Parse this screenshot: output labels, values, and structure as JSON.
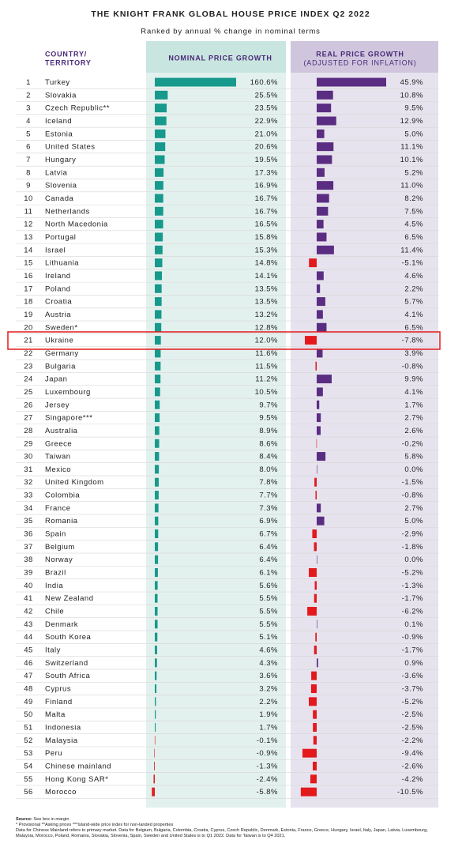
{
  "chart_data": {
    "type": "bar",
    "title": "THE KNIGHT FRANK GLOBAL HOUSE PRICE INDEX Q2 2022",
    "subtitle": "Ranked by annual % change in nominal terms",
    "category_header": [
      "COUNTRY/",
      "TERRITORY"
    ],
    "negative_color": "#e3191c",
    "ranks": [
      1,
      2,
      3,
      4,
      5,
      6,
      7,
      8,
      9,
      10,
      11,
      12,
      13,
      14,
      15,
      16,
      17,
      18,
      19,
      20,
      21,
      22,
      23,
      24,
      25,
      26,
      27,
      28,
      29,
      30,
      31,
      32,
      33,
      34,
      35,
      36,
      37,
      38,
      39,
      40,
      41,
      42,
      43,
      44,
      45,
      46,
      47,
      48,
      49,
      50,
      51,
      52,
      53,
      54,
      55,
      56
    ],
    "categories": [
      "Turkey",
      "Slovakia",
      "Czech Republic**",
      "Iceland",
      "Estonia",
      "United States",
      "Hungary",
      "Latvia",
      "Slovenia",
      "Canada",
      "Netherlands",
      "North Macedonia",
      "Portugal",
      "Israel",
      "Lithuania",
      "Ireland",
      "Poland",
      "Croatia",
      "Austria",
      "Sweden*",
      "Ukraine",
      "Germany",
      "Bulgaria",
      "Japan",
      "Luxembourg",
      "Jersey",
      "Singapore***",
      "Australia",
      "Greece",
      "Taiwan",
      "Mexico",
      "United Kingdom",
      "Colombia",
      "France",
      "Romania",
      "Spain",
      "Belgium",
      "Norway",
      "Brazil",
      "India",
      "New Zealand",
      "Chile",
      "Denmark",
      "South Korea",
      "Italy",
      "Switzerland",
      "South Africa",
      "Cyprus",
      "Finland",
      "Malta",
      "Indonesia",
      "Malaysia",
      "Peru",
      "Chinese mainland",
      "Hong Kong SAR*",
      "Morocco"
    ],
    "series": [
      {
        "name": "NOMINAL PRICE GROWTH",
        "color": "#17998c",
        "values": [
          160.6,
          25.5,
          23.5,
          22.9,
          21.0,
          20.6,
          19.5,
          17.3,
          16.9,
          16.7,
          16.7,
          16.5,
          15.8,
          15.3,
          14.8,
          14.1,
          13.5,
          13.5,
          13.2,
          12.8,
          12.0,
          11.6,
          11.5,
          11.2,
          10.5,
          9.7,
          9.5,
          8.9,
          8.6,
          8.4,
          8.0,
          7.8,
          7.7,
          7.3,
          6.9,
          6.7,
          6.4,
          6.4,
          6.1,
          5.6,
          5.5,
          5.5,
          5.5,
          5.1,
          4.6,
          4.3,
          3.6,
          3.2,
          2.2,
          1.9,
          1.7,
          -0.1,
          -0.9,
          -1.3,
          -2.4,
          -5.8
        ],
        "value_labels": [
          "160.6%",
          "25.5%",
          "23.5%",
          "22.9%",
          "21.0%",
          "20.6%",
          "19.5%",
          "17.3%",
          "16.9%",
          "16.7%",
          "16.7%",
          "16.5%",
          "15.8%",
          "15.3%",
          "14.8%",
          "14.1%",
          "13.5%",
          "13.5%",
          "13.2%",
          "12.8%",
          "12.0%",
          "11.6%",
          "11.5%",
          "11.2%",
          "10.5%",
          "9.7%",
          "9.5%",
          "8.9%",
          "8.6%",
          "8.4%",
          "8.0%",
          "7.8%",
          "7.7%",
          "7.3%",
          "6.9%",
          "6.7%",
          "6.4%",
          "6.4%",
          "6.1%",
          "5.6%",
          "5.5%",
          "5.5%",
          "5.5%",
          "5.1%",
          "4.6%",
          "4.3%",
          "3.6%",
          "3.2%",
          "2.2%",
          "1.9%",
          "1.7%",
          "-0.1%",
          "-0.9%",
          "-1.3%",
          "-2.4%",
          "-5.8%"
        ]
      },
      {
        "name": "REAL PRICE GROWTH",
        "name_note": "(ADJUSTED FOR INFLATION)",
        "color": "#5a2d82",
        "values": [
          45.9,
          10.8,
          9.5,
          12.9,
          5.0,
          11.1,
          10.1,
          5.2,
          11.0,
          8.2,
          7.5,
          4.5,
          6.5,
          11.4,
          -5.1,
          4.6,
          2.2,
          5.7,
          4.1,
          6.5,
          -7.8,
          3.9,
          -0.8,
          9.9,
          4.1,
          1.7,
          2.7,
          2.6,
          -0.2,
          5.8,
          0.0,
          -1.5,
          -0.8,
          2.7,
          5.0,
          -2.9,
          -1.8,
          0.0,
          -5.2,
          -1.3,
          -1.7,
          -6.2,
          0.1,
          -0.9,
          -1.7,
          0.9,
          -3.6,
          -3.7,
          -5.2,
          -2.5,
          -2.5,
          -2.2,
          -9.4,
          -2.6,
          -4.2,
          -10.5
        ],
        "value_labels": [
          "45.9%",
          "10.8%",
          "9.5%",
          "12.9%",
          "5.0%",
          "11.1%",
          "10.1%",
          "5.2%",
          "11.0%",
          "8.2%",
          "7.5%",
          "4.5%",
          "6.5%",
          "11.4%",
          "-5.1%",
          "4.6%",
          "2.2%",
          "5.7%",
          "4.1%",
          "6.5%",
          "-7.8%",
          "3.9%",
          "-0.8%",
          "9.9%",
          "4.1%",
          "1.7%",
          "2.7%",
          "2.6%",
          "-0.2%",
          "5.8%",
          "0.0%",
          "-1.5%",
          "-0.8%",
          "2.7%",
          "5.0%",
          "-2.9%",
          "-1.8%",
          "0.0%",
          "-5.2%",
          "-1.3%",
          "-1.7%",
          "-6.2%",
          "0.1%",
          "-0.9%",
          "-1.7%",
          "0.9%",
          "-3.6%",
          "-3.7%",
          "-5.2%",
          "-2.5%",
          "-2.5%",
          "-2.2%",
          "-9.4%",
          "-2.6%",
          "-4.2%",
          "-10.5%"
        ]
      }
    ],
    "source_label": "Source:",
    "source": "See box in margin",
    "notes": [
      "* Provisional **Asking prices ***Island-wide price index for non-landed properties",
      "Data for Chinese Mainland refers to primary market. Data for Belgium, Bulgaria, Colombia, Croatia, Cyprus, Czech Republic, Denmark, Estonia, France, Greece, Hungary, Israel, Italy, Japan, Latvia, Luxembourg, Malaysia, Morocco, Poland, Romania, Slovakia, Slovenia, Spain, Sweden and United States is to Q1 2022. Data for Taiwan is to Q4 2021."
    ]
  }
}
